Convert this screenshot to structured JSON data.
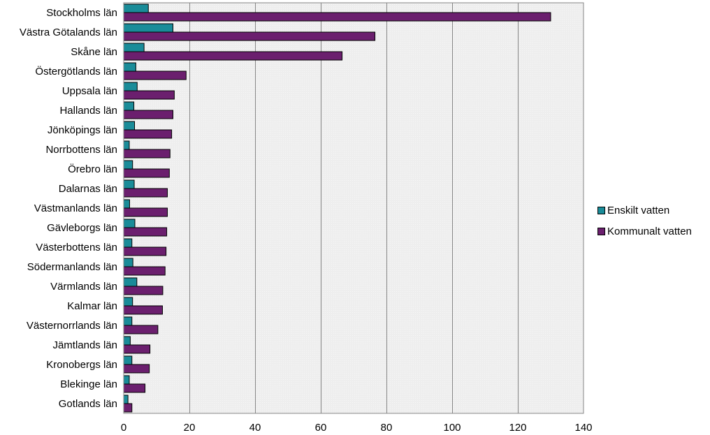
{
  "chart_data": {
    "type": "bar",
    "orientation": "horizontal",
    "title": "",
    "xlabel": "",
    "ylabel": "",
    "xlim": [
      0,
      140
    ],
    "x_ticks": [
      0,
      20,
      40,
      60,
      80,
      100,
      120,
      140
    ],
    "grid": true,
    "legend_position": "right",
    "categories": [
      "Stockholms län",
      "Västra Götalands län",
      "Skåne län",
      "Östergötlands län",
      "Uppsala län",
      "Hallands län",
      "Jönköpings län",
      "Norrbottens län",
      "Örebro län",
      "Dalarnas län",
      "Västmanlands län",
      "Gävleborgs län",
      "Västerbottens län",
      "Södermanlands län",
      "Värmlands län",
      "Kalmar län",
      "Västernorrlands län",
      "Jämtlands län",
      "Kronobergs län",
      "Blekinge län",
      "Gotlands län"
    ],
    "series": [
      {
        "name": "Enskilt vatten",
        "color": "#1a8c99",
        "values": [
          7.5,
          15,
          6.2,
          3.7,
          4.1,
          3.1,
          3.3,
          1.7,
          2.7,
          3.2,
          1.8,
          3.4,
          2.5,
          2.8,
          4,
          2.7,
          2.5,
          2,
          2.5,
          1.7,
          1.3
        ]
      },
      {
        "name": "Kommunalt vatten",
        "color": "#6b1f6e",
        "values": [
          130,
          76.5,
          66.5,
          19,
          15.4,
          15,
          14.6,
          14.1,
          13.9,
          13.3,
          13.3,
          13.1,
          12.9,
          12.6,
          11.9,
          11.8,
          10.4,
          8,
          7.8,
          6.5,
          2.5
        ]
      }
    ]
  }
}
